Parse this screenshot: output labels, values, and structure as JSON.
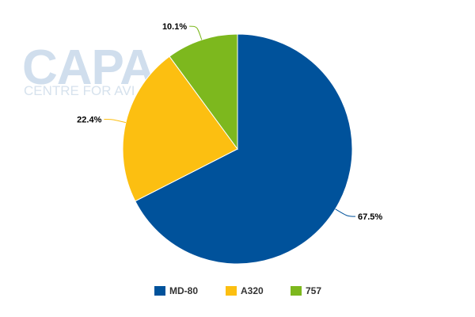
{
  "watermark": {
    "main": "CAPA",
    "sub": "CENTRE FOR AVI"
  },
  "chart_data": {
    "type": "pie",
    "title": "",
    "start_angle_deg": 0,
    "direction": "clockwise",
    "legend_position": "bottom",
    "series": [
      {
        "name": "MD-80",
        "value": 67.5,
        "label": "67.5%",
        "color": "#00529b"
      },
      {
        "name": "A320",
        "value": 22.4,
        "label": "22.4%",
        "color": "#fcbf11"
      },
      {
        "name": "757",
        "value": 10.1,
        "label": "10.1%",
        "color": "#7db81e"
      }
    ]
  }
}
